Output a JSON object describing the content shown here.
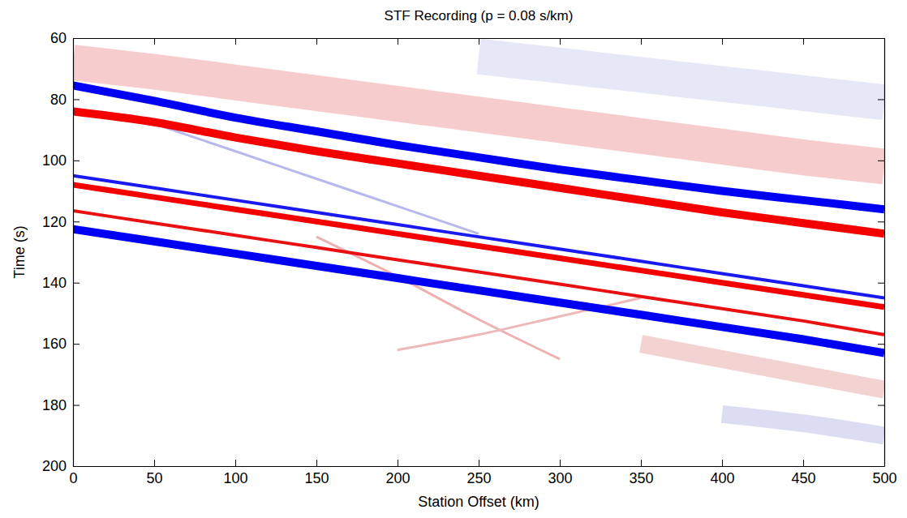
{
  "chart_data": {
    "type": "line",
    "title": "STF Recording (p = 0.08 s/km)",
    "x_label": "Station Offset (km)",
    "y_label": "Time (s)",
    "xlim": [
      0,
      500
    ],
    "ylim": [
      200,
      60
    ],
    "xticks": [
      0,
      50,
      100,
      150,
      200,
      250,
      300,
      350,
      400,
      450,
      500
    ],
    "yticks": [
      60,
      80,
      100,
      120,
      140,
      160,
      180,
      200
    ],
    "x": [
      0,
      50,
      100,
      150,
      200,
      250,
      300,
      350,
      400,
      450,
      500
    ],
    "series": [
      {
        "color": "#f6cccc",
        "line_style": "band",
        "values": [
          68,
          71,
          74.5,
          78,
          81.5,
          85,
          88.5,
          92,
          95.5,
          99,
          102
        ]
      },
      {
        "color": "#e6e7f7",
        "line_style": "band",
        "values": [
          null,
          null,
          null,
          null,
          null,
          66,
          69,
          72,
          75,
          78,
          81
        ]
      },
      {
        "color": "#f3d2d2",
        "line_style": "wide",
        "values": [
          null,
          null,
          null,
          null,
          null,
          null,
          null,
          160,
          165,
          170,
          175
        ]
      },
      {
        "color": "#dcdcf3",
        "line_style": "wide",
        "values": [
          null,
          null,
          null,
          null,
          null,
          null,
          null,
          null,
          183,
          186,
          190
        ]
      },
      {
        "color": "#b8b8ec",
        "line_style": "faint",
        "values": [
          null,
          88,
          97,
          106,
          115,
          124,
          null,
          null,
          null,
          null,
          null
        ]
      },
      {
        "color": "#eeb0b0",
        "line_style": "faint",
        "values": [
          null,
          null,
          null,
          125,
          138,
          152,
          165,
          null,
          null,
          null,
          null
        ]
      },
      {
        "color": "#eeb8b8",
        "line_style": "faint",
        "values": [
          null,
          null,
          null,
          null,
          162,
          157,
          151,
          145,
          null,
          null,
          null
        ]
      },
      {
        "color": "#0000f5",
        "line_style": "thick",
        "values": [
          75.5,
          80.5,
          86,
          90.5,
          95,
          99,
          103,
          106.5,
          110,
          113,
          116
        ]
      },
      {
        "color": "#f50000",
        "line_style": "thick",
        "values": [
          84,
          87.5,
          92.5,
          97,
          101,
          105,
          109,
          113,
          117,
          120.5,
          124
        ]
      },
      {
        "color": "#1a1af0",
        "line_style": "thin",
        "values": [
          105,
          109,
          113,
          117,
          121,
          125,
          129,
          133,
          137,
          141,
          145
        ]
      },
      {
        "color": "#f50000",
        "line_style": "medium",
        "values": [
          108,
          112,
          116,
          120,
          124,
          128,
          132,
          136,
          140,
          144,
          148
        ]
      },
      {
        "color": "#e81010",
        "line_style": "thin",
        "values": [
          116.5,
          120.5,
          124.5,
          128.5,
          132.5,
          136.5,
          140.5,
          144.5,
          148.5,
          152.5,
          157
        ]
      },
      {
        "color": "#0000f5",
        "line_style": "thick",
        "values": [
          122.5,
          126.5,
          130.5,
          134.5,
          138.5,
          142.5,
          146.5,
          150.5,
          154.5,
          158.5,
          163
        ]
      }
    ]
  }
}
